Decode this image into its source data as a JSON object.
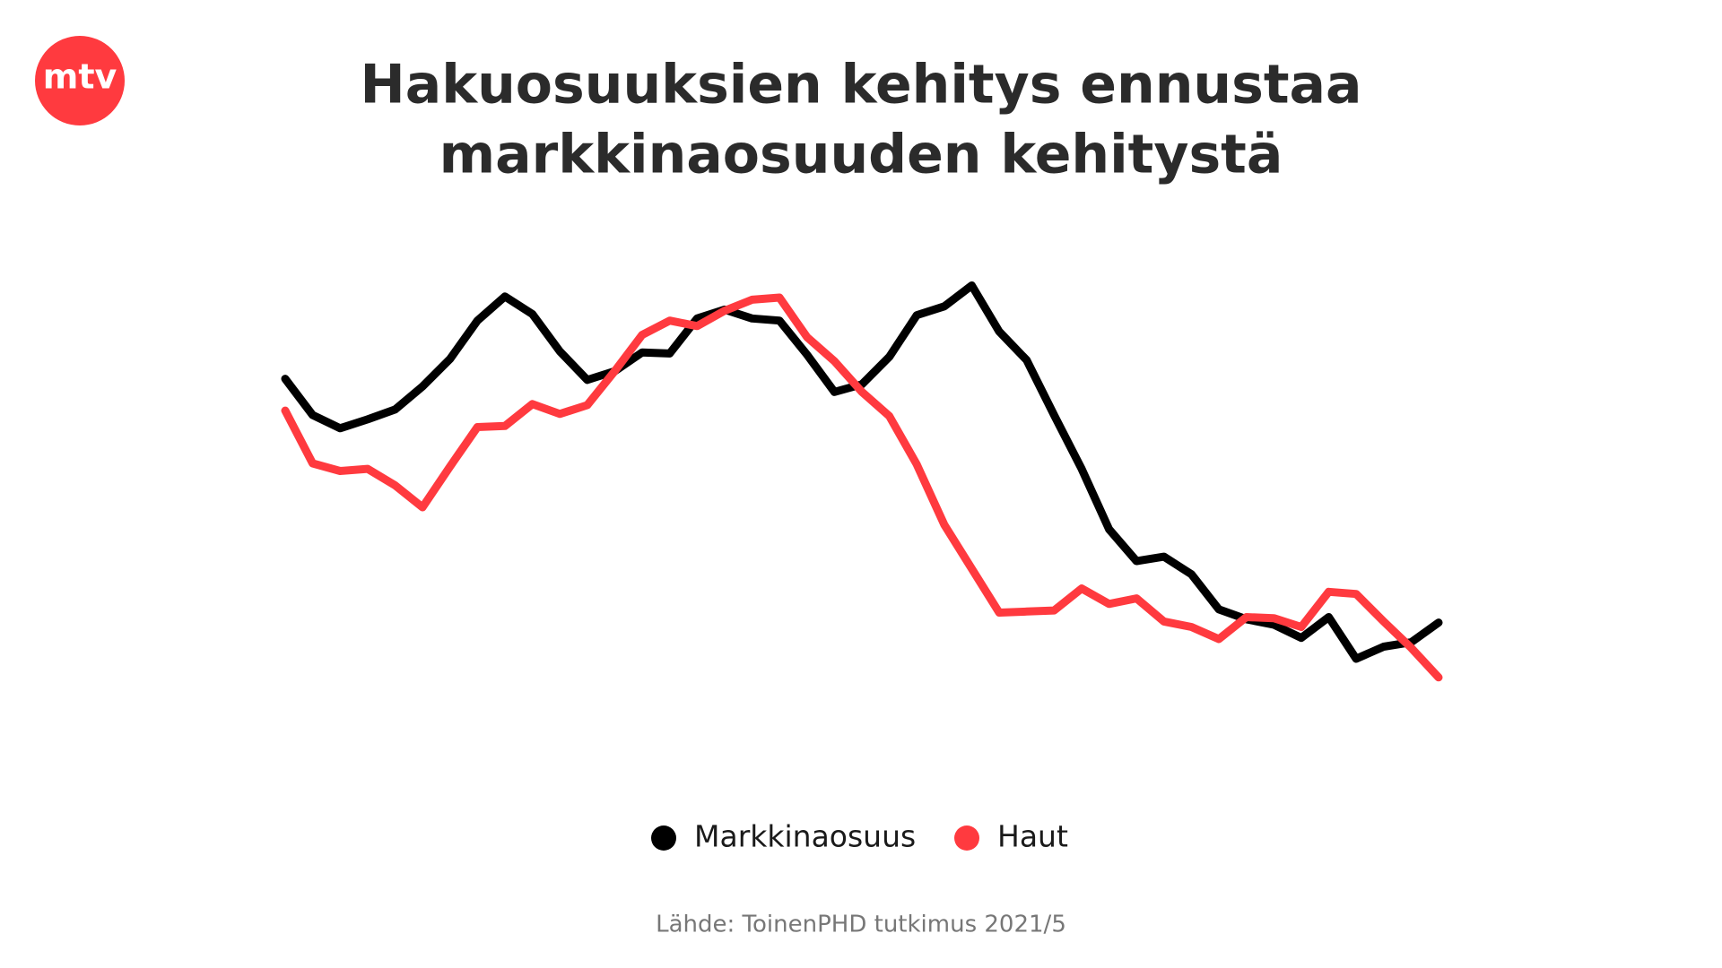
{
  "logo": "mtv",
  "chart_data": {
    "type": "line",
    "title": [
      "Hakuosuuksien kehitys ennustaa",
      "markkinaosuuden kehitystä"
    ],
    "source": "Lähde: ToinenPHD tutkimus 2021/5",
    "categories": [
      null,
      null,
      null,
      null,
      null,
      null,
      null,
      null,
      null,
      null,
      null,
      null,
      null,
      null,
      null,
      null,
      null,
      null,
      null,
      null,
      null,
      null,
      null,
      null,
      null,
      null,
      null,
      null,
      null,
      null,
      null,
      null,
      null,
      null,
      null,
      null,
      null,
      null,
      null,
      null,
      null,
      null,
      null
    ],
    "ylim": [
      0,
      100
    ],
    "series": [
      {
        "name": "Markkinaosuus",
        "color": "#000000",
        "values": [
          73.75,
          65.5,
          62.5,
          64.5,
          66.75,
          72,
          78.25,
          87,
          92.5,
          88.5,
          80,
          73.5,
          75.5,
          79.75,
          79.5,
          87.5,
          89.5,
          87.5,
          87,
          79.25,
          70.75,
          72.5,
          78.75,
          88.25,
          90.25,
          95,
          84.5,
          78,
          65.5,
          53.25,
          39.5,
          32.25,
          33.25,
          29.25,
          21.25,
          19,
          17.75,
          14.75,
          19.5,
          10,
          12.75,
          13.75,
          18.25
        ]
      },
      {
        "name": "Haut",
        "color": "#ff3a3f",
        "values": [
          66.5,
          54.5,
          52.75,
          53.25,
          49.5,
          44.5,
          53.75,
          62.75,
          63,
          68,
          65.75,
          67.75,
          75.5,
          83.75,
          87,
          85.75,
          89.25,
          91.75,
          92.25,
          83.25,
          77.75,
          70.75,
          65.25,
          54.25,
          40.5,
          30.5,
          20.5,
          20.75,
          21,
          26,
          22.5,
          23.75,
          18.5,
          17.25,
          14.5,
          19.5,
          19.25,
          17.25,
          25.25,
          24.75,
          18.5,
          12.5,
          5.75
        ]
      }
    ]
  }
}
